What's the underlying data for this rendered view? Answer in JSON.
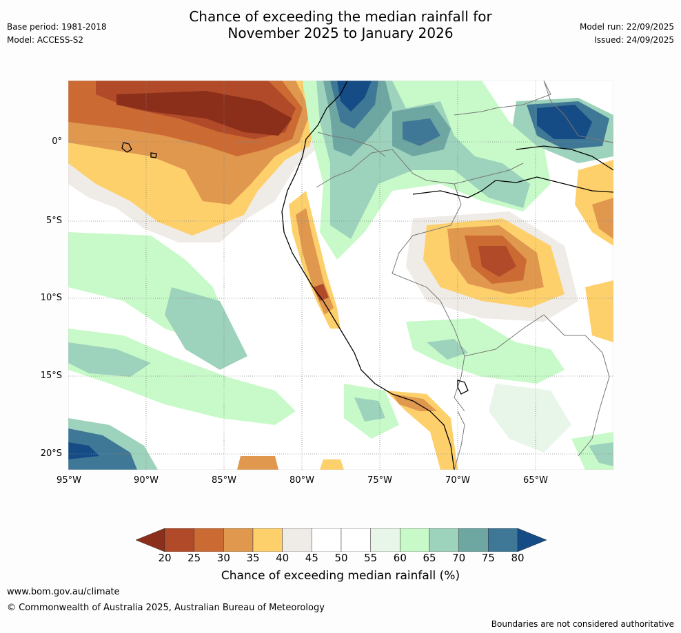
{
  "title": {
    "line1": "Chance of exceeding the median rainfall for",
    "line2": "November 2025 to January 2026"
  },
  "meta_left": {
    "base_period": "Base period: 1981-2018",
    "model": "Model: ACCESS-S2"
  },
  "meta_right": {
    "model_run": "Model run: 22/09/2025",
    "issued": "Issued: 24/09/2025"
  },
  "map": {
    "lat_labels": [
      "0°",
      "5°S",
      "10°S",
      "15°S",
      "20°S"
    ],
    "lon_labels": [
      "95°W",
      "90°W",
      "85°W",
      "80°W",
      "75°W",
      "70°W",
      "65°W"
    ]
  },
  "colorbar": {
    "title": "Chance of exceeding median rainfall (%)",
    "ticks": [
      "20",
      "25",
      "30",
      "35",
      "40",
      "45",
      "50",
      "55",
      "60",
      "65",
      "70",
      "75",
      "80"
    ],
    "colors": [
      "#8b2e1a",
      "#b14a28",
      "#cc6a34",
      "#e0974e",
      "#fdd06b",
      "#efebe6",
      "#ffffff",
      "#ffffff",
      "#e8f5e9",
      "#c8fac9",
      "#9dd2bc",
      "#6ea6a2",
      "#3f7896",
      "#154c85"
    ]
  },
  "footer": {
    "url": "www.bom.gov.au/climate",
    "copyright": "© Commonwealth of Australia 2025, Australian Bureau of Meteorology",
    "disclaimer": "Boundaries are not considered authoritative"
  }
}
